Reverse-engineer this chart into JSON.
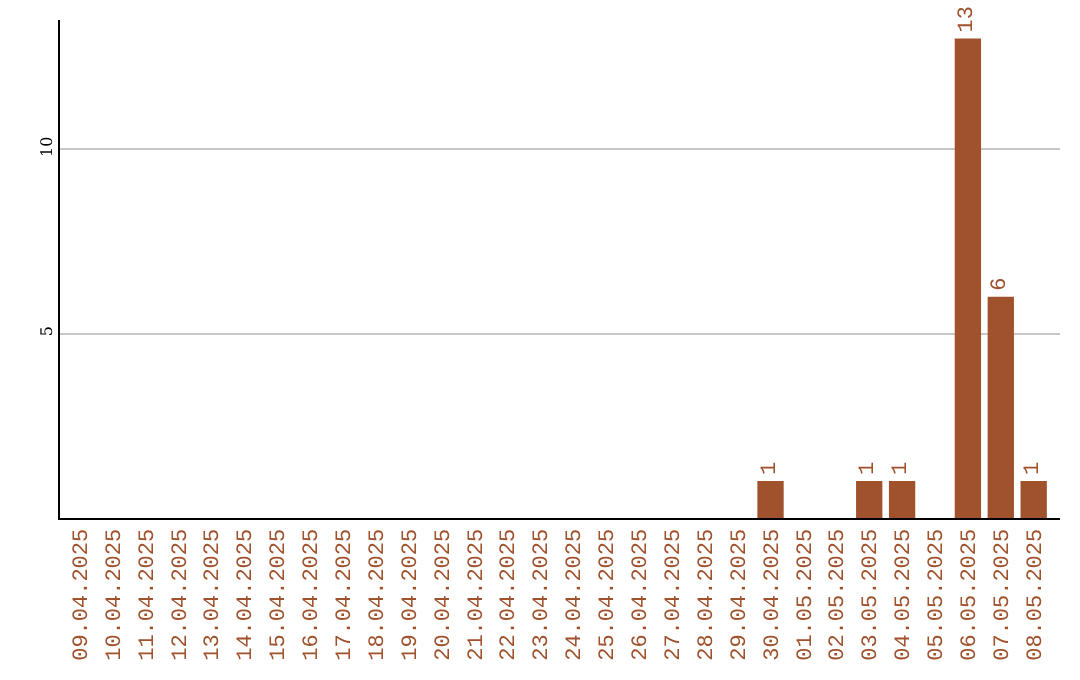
{
  "chart_data": {
    "type": "bar",
    "categories": [
      "09.04.2025",
      "10.04.2025",
      "11.04.2025",
      "12.04.2025",
      "13.04.2025",
      "14.04.2025",
      "15.04.2025",
      "16.04.2025",
      "17.04.2025",
      "18.04.2025",
      "19.04.2025",
      "20.04.2025",
      "21.04.2025",
      "22.04.2025",
      "23.04.2025",
      "24.04.2025",
      "25.04.2025",
      "26.04.2025",
      "27.04.2025",
      "28.04.2025",
      "29.04.2025",
      "30.04.2025",
      "01.05.2025",
      "02.05.2025",
      "03.05.2025",
      "04.05.2025",
      "05.05.2025",
      "06.05.2025",
      "07.05.2025",
      "08.05.2025"
    ],
    "values": [
      0,
      0,
      0,
      0,
      0,
      0,
      0,
      0,
      0,
      0,
      0,
      0,
      0,
      0,
      0,
      0,
      0,
      0,
      0,
      0,
      0,
      1,
      0,
      0,
      1,
      1,
      0,
      13,
      6,
      1
    ],
    "value_labels": [
      null,
      null,
      null,
      null,
      null,
      null,
      null,
      null,
      null,
      null,
      null,
      null,
      null,
      null,
      null,
      null,
      null,
      null,
      null,
      null,
      null,
      "1",
      null,
      null,
      "1",
      "1",
      null,
      "13",
      "6",
      "1"
    ],
    "color": "#a0522d",
    "ylim": [
      0,
      13.5
    ],
    "yticks": [
      5,
      10
    ],
    "grid": "y",
    "legend": false
  }
}
